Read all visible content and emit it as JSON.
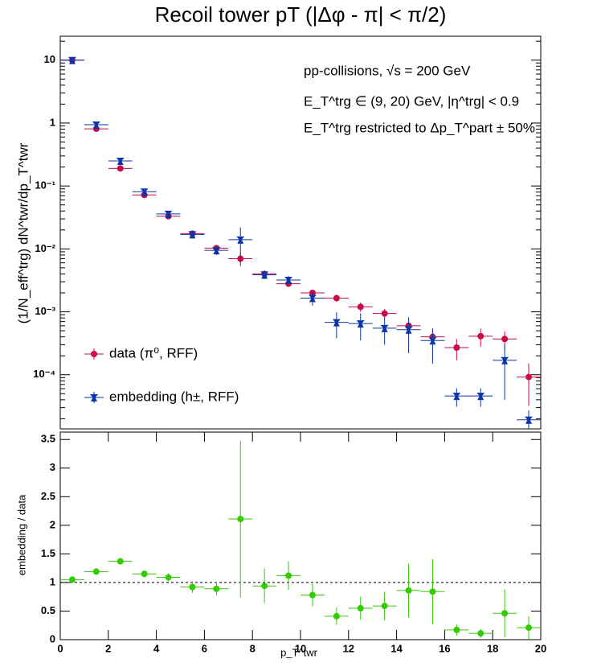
{
  "chart_data": [
    {
      "type": "scatter",
      "title": "Recoil tower pT (|Δφ - π| < π/2)",
      "y_label": "(1/N_eff^trg) dN^twr/dp_T^twr",
      "annotations": [
        "pp-collisions, √s = 200 GeV",
        "E_T^trg ∈ (9, 20) GeV, |η^trg| < 0.9",
        "E_T^trg restricted to Δp_T^part ± 50%"
      ],
      "log_y": true,
      "legend": "bottom-left",
      "x_error": 0.5,
      "x": [
        0.5,
        1.5,
        2.5,
        3.5,
        4.5,
        5.5,
        6.5,
        7.5,
        8.5,
        9.5,
        10.5,
        11.5,
        12.5,
        13.5,
        14.5,
        15.5,
        16.5,
        17.5,
        18.5,
        19.5
      ],
      "xlim": [
        0,
        20
      ],
      "ylim": [
        1.38e-05,
        24
      ],
      "yticks": [
        {
          "value": 0.0001,
          "label": "10⁻⁴"
        },
        {
          "value": 0.001,
          "label": "10⁻³"
        },
        {
          "value": 0.01,
          "label": "10⁻²"
        },
        {
          "value": 0.1,
          "label": "10⁻¹"
        },
        1,
        10
      ],
      "series": [
        {
          "name": "data (π⁰, RFF)",
          "color": "#cc0a44",
          "values": [
            10,
            0.81,
            0.19,
            0.072,
            0.033,
            0.0175,
            0.0103,
            0.007,
            0.004,
            0.0028,
            0.002,
            0.00165,
            0.0012,
            0.00094,
            0.0006,
            0.0004,
            0.00027,
            0.00041,
            0.00037,
            9.2e-05
          ],
          "errors": [
            0.2,
            0.03,
            0.008,
            0.003,
            0.0015,
            0.001,
            0.0008,
            0.0017,
            0.0005,
            0.0003,
            0.0002,
            0.0002,
            0.0002,
            0.00017,
            0.00012,
            0.0001,
            0.0001,
            0.00013,
            0.00012,
            6e-05
          ]
        },
        {
          "name": "embedding (h±, RFF)",
          "color": "#0a35aa",
          "values": [
            10,
            0.94,
            0.25,
            0.081,
            0.036,
            0.017,
            0.0095,
            0.014,
            0.0039,
            0.0032,
            0.00165,
            0.00068,
            0.00065,
            0.00055,
            0.00052,
            0.00035,
            4.6e-05,
            4.6e-05,
            0.00017,
            1.92e-05
          ],
          "errors": [
            0.2,
            0.04,
            0.01,
            0.004,
            0.002,
            0.0015,
            0.0015,
            0.008,
            0.0006,
            0.0005,
            0.0004,
            0.0003,
            0.0003,
            0.00025,
            0.0003,
            0.0002,
            1.5e-05,
            1.5e-05,
            0.00013,
            8e-06
          ]
        }
      ]
    },
    {
      "type": "scatter",
      "y_label": "embedding / data",
      "x_label": "p_T^twr",
      "x_error": 0.5,
      "hline": 1,
      "x": [
        0.5,
        1.5,
        2.5,
        3.5,
        4.5,
        5.5,
        6.5,
        7.5,
        8.5,
        9.5,
        10.5,
        11.5,
        12.5,
        13.5,
        14.5,
        15.5,
        16.5,
        17.5,
        18.5,
        19.5
      ],
      "xlim": [
        0,
        20
      ],
      "ylim": [
        0,
        3.63
      ],
      "xticks": [
        0,
        2,
        4,
        6,
        8,
        10,
        12,
        14,
        16,
        18,
        20
      ],
      "yticks": [
        0,
        0.5,
        1,
        1.5,
        2,
        2.5,
        3,
        3.5
      ],
      "series": [
        {
          "color": "#33cc00",
          "values": [
            1.05,
            1.19,
            1.37,
            1.15,
            1.09,
            0.92,
            0.89,
            2.11,
            0.94,
            1.12,
            0.78,
            0.41,
            0.55,
            0.59,
            0.86,
            0.84,
            0.17,
            0.11,
            0.46,
            0.21
          ],
          "errors": [
            0.03,
            0.03,
            0.03,
            0.06,
            0.07,
            0.1,
            0.12,
            1.37,
            0.3,
            0.25,
            0.2,
            0.15,
            0.2,
            0.25,
            0.47,
            0.57,
            0.1,
            0.08,
            0.42,
            0.2
          ]
        }
      ]
    }
  ]
}
